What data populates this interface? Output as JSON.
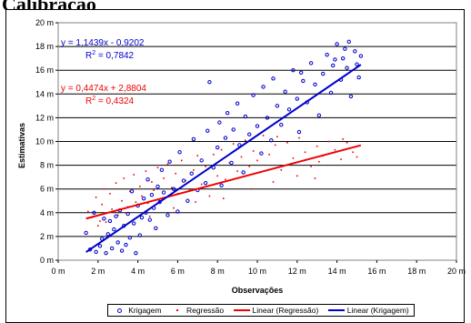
{
  "page": {
    "heading": "Calibração"
  },
  "chart_data": {
    "type": "scatter",
    "xlabel": "Observações",
    "ylabel": "Estimativas",
    "xlim": [
      0,
      20
    ],
    "ylim": [
      0,
      20
    ],
    "x_ticks": [
      "0 m",
      "2 m",
      "4 m",
      "6 m",
      "8 m",
      "10 m",
      "12 m",
      "14 m",
      "16 m",
      "18 m",
      "20 m"
    ],
    "y_ticks": [
      "0 m",
      "2 m",
      "4 m",
      "6 m",
      "8 m",
      "10 m",
      "12 m",
      "14 m",
      "16 m",
      "18 m",
      "20 m"
    ],
    "grid": "horizontal",
    "legend_position": "bottom",
    "colors": {
      "krigagem": "#0000cc",
      "regressao": "#ee0000"
    },
    "series": [
      {
        "name": "Krigagem",
        "kind": "points",
        "marker": "open-circle",
        "color": "#0000cc",
        "points": [
          [
            1.4,
            2.3
          ],
          [
            1.6,
            0.9
          ],
          [
            1.8,
            4.0
          ],
          [
            1.9,
            0.7
          ],
          [
            2.1,
            1.2
          ],
          [
            2.2,
            1.8
          ],
          [
            2.3,
            3.5
          ],
          [
            2.4,
            0.6
          ],
          [
            2.5,
            2.2
          ],
          [
            2.6,
            3.3
          ],
          [
            2.7,
            1.0
          ],
          [
            2.8,
            2.6
          ],
          [
            2.9,
            3.7
          ],
          [
            3.0,
            1.5
          ],
          [
            3.1,
            4.2
          ],
          [
            3.2,
            0.8
          ],
          [
            3.3,
            2.9
          ],
          [
            3.4,
            1.3
          ],
          [
            3.5,
            3.9
          ],
          [
            3.6,
            1.9
          ],
          [
            3.7,
            5.8
          ],
          [
            3.8,
            3.1
          ],
          [
            3.9,
            0.6
          ],
          [
            4.0,
            4.6
          ],
          [
            4.1,
            2.1
          ],
          [
            4.2,
            3.6
          ],
          [
            4.3,
            5.2
          ],
          [
            4.4,
            4.0
          ],
          [
            4.5,
            6.8
          ],
          [
            4.6,
            3.4
          ],
          [
            4.7,
            5.5
          ],
          [
            4.8,
            4.4
          ],
          [
            4.9,
            2.7
          ],
          [
            5.0,
            6.2
          ],
          [
            5.1,
            4.9
          ],
          [
            5.2,
            7.6
          ],
          [
            5.3,
            5.7
          ],
          [
            5.5,
            3.8
          ],
          [
            5.6,
            8.3
          ],
          [
            5.8,
            6.0
          ],
          [
            6.0,
            4.1
          ],
          [
            6.1,
            9.1
          ],
          [
            6.3,
            6.7
          ],
          [
            6.5,
            5.0
          ],
          [
            6.7,
            7.3
          ],
          [
            6.8,
            10.2
          ],
          [
            7.0,
            5.9
          ],
          [
            7.2,
            8.4
          ],
          [
            7.4,
            6.5
          ],
          [
            7.5,
            10.9
          ],
          [
            7.6,
            15.0
          ],
          [
            7.8,
            7.8
          ],
          [
            8.0,
            9.5
          ],
          [
            8.1,
            11.6
          ],
          [
            8.2,
            6.3
          ],
          [
            8.4,
            10.3
          ],
          [
            8.5,
            12.4
          ],
          [
            8.7,
            8.2
          ],
          [
            8.8,
            11.0
          ],
          [
            9.0,
            13.2
          ],
          [
            9.1,
            9.7
          ],
          [
            9.3,
            7.4
          ],
          [
            9.4,
            12.1
          ],
          [
            9.6,
            10.6
          ],
          [
            9.8,
            13.9
          ],
          [
            10.0,
            11.3
          ],
          [
            10.2,
            9.0
          ],
          [
            10.3,
            14.6
          ],
          [
            10.5,
            12.0
          ],
          [
            10.7,
            10.1
          ],
          [
            10.8,
            15.3
          ],
          [
            11.0,
            13.0
          ],
          [
            11.2,
            11.4
          ],
          [
            11.4,
            14.2
          ],
          [
            11.6,
            12.7
          ],
          [
            11.8,
            16.0
          ],
          [
            12.0,
            13.6
          ],
          [
            12.1,
            10.8
          ],
          [
            12.3,
            15.1
          ],
          [
            12.5,
            13.3
          ],
          [
            12.7,
            16.6
          ],
          [
            12.9,
            14.8
          ],
          [
            13.1,
            12.2
          ],
          [
            13.3,
            15.7
          ],
          [
            13.5,
            17.3
          ],
          [
            13.7,
            14.1
          ],
          [
            13.8,
            16.4
          ],
          [
            14.0,
            18.2
          ],
          [
            14.2,
            15.2
          ],
          [
            14.3,
            17.0
          ],
          [
            14.5,
            16.2
          ],
          [
            14.6,
            18.4
          ],
          [
            14.7,
            13.8
          ],
          [
            14.9,
            17.6
          ],
          [
            15.0,
            16.5
          ],
          [
            15.1,
            15.4
          ],
          [
            14.4,
            17.8
          ],
          [
            13.9,
            16.9
          ],
          [
            15.2,
            17.2
          ],
          [
            12.2,
            15.8
          ]
        ]
      },
      {
        "name": "Regressão",
        "kind": "points",
        "marker": "small-dot",
        "color": "#ee0000",
        "points": [
          [
            1.5,
            4.1
          ],
          [
            1.7,
            3.6
          ],
          [
            1.9,
            5.3
          ],
          [
            2.0,
            2.9
          ],
          [
            2.2,
            4.7
          ],
          [
            2.3,
            6.0
          ],
          [
            2.4,
            3.2
          ],
          [
            2.6,
            5.6
          ],
          [
            2.7,
            4.3
          ],
          [
            2.9,
            6.5
          ],
          [
            3.0,
            3.8
          ],
          [
            3.2,
            5.0
          ],
          [
            3.3,
            6.9
          ],
          [
            3.5,
            4.5
          ],
          [
            3.6,
            5.8
          ],
          [
            3.8,
            7.2
          ],
          [
            3.9,
            4.9
          ],
          [
            4.1,
            6.2
          ],
          [
            4.2,
            5.4
          ],
          [
            4.4,
            7.5
          ],
          [
            4.5,
            4.8
          ],
          [
            4.7,
            6.6
          ],
          [
            4.8,
            5.9
          ],
          [
            5.0,
            7.8
          ],
          [
            5.2,
            5.2
          ],
          [
            5.3,
            6.9
          ],
          [
            5.5,
            8.1
          ],
          [
            5.7,
            6.1
          ],
          [
            5.9,
            7.3
          ],
          [
            6.0,
            5.6
          ],
          [
            6.2,
            8.4
          ],
          [
            6.4,
            6.7
          ],
          [
            6.6,
            5.9
          ],
          [
            6.8,
            7.6
          ],
          [
            7.0,
            8.8
          ],
          [
            7.2,
            6.4
          ],
          [
            7.4,
            7.9
          ],
          [
            7.6,
            5.4
          ],
          [
            7.8,
            8.9
          ],
          [
            8.0,
            7.1
          ],
          [
            8.2,
            9.3
          ],
          [
            8.4,
            6.8
          ],
          [
            8.6,
            8.2
          ],
          [
            8.8,
            9.8
          ],
          [
            9.0,
            7.5
          ],
          [
            9.2,
            8.7
          ],
          [
            9.4,
            10.1
          ],
          [
            9.6,
            7.9
          ],
          [
            9.8,
            9.2
          ],
          [
            10.0,
            8.4
          ],
          [
            10.3,
            10.5
          ],
          [
            10.6,
            8.9
          ],
          [
            10.9,
            9.7
          ],
          [
            11.2,
            7.6
          ],
          [
            11.5,
            9.9
          ],
          [
            11.8,
            8.6
          ],
          [
            12.1,
            10.3
          ],
          [
            12.4,
            9.1
          ],
          [
            12.7,
            7.9
          ],
          [
            13.0,
            9.6
          ],
          [
            13.3,
            8.8
          ],
          [
            13.6,
            10.0
          ],
          [
            13.9,
            9.3
          ],
          [
            14.2,
            8.5
          ],
          [
            14.5,
            9.9
          ],
          [
            14.8,
            9.1
          ],
          [
            15.0,
            8.7
          ],
          [
            14.3,
            10.2
          ],
          [
            13.1,
            8.3
          ],
          [
            11.0,
            10.4
          ],
          [
            2.1,
            3.3
          ],
          [
            3.4,
            4.0
          ],
          [
            4.6,
            3.7
          ],
          [
            5.8,
            4.4
          ],
          [
            6.9,
            4.9
          ],
          [
            8.3,
            5.2
          ],
          [
            9.7,
            6.0
          ],
          [
            10.8,
            6.6
          ],
          [
            12.0,
            7.1
          ],
          [
            12.9,
            6.9
          ]
        ]
      },
      {
        "name": "Linear (Regressão)",
        "kind": "trend",
        "color": "#ee0000",
        "slope": 0.4474,
        "intercept": 2.8804,
        "x_range": [
          1.4,
          15.2
        ]
      },
      {
        "name": "Linear (Krigagem)",
        "kind": "trend",
        "color": "#0000cc",
        "slope": 1.1439,
        "intercept": -0.9202,
        "x_range": [
          1.4,
          15.2
        ]
      }
    ],
    "annotations": {
      "krigagem_eq": "y = 1,1439x - 0,9202",
      "krigagem_r2_prefix": "R",
      "krigagem_r2_value": " = 0,7842",
      "regressao_eq": "y = 0,4474x + 2,8804",
      "regressao_r2_prefix": "R",
      "regressao_r2_value": " = 0,4324",
      "r2_superscript": "2"
    }
  }
}
